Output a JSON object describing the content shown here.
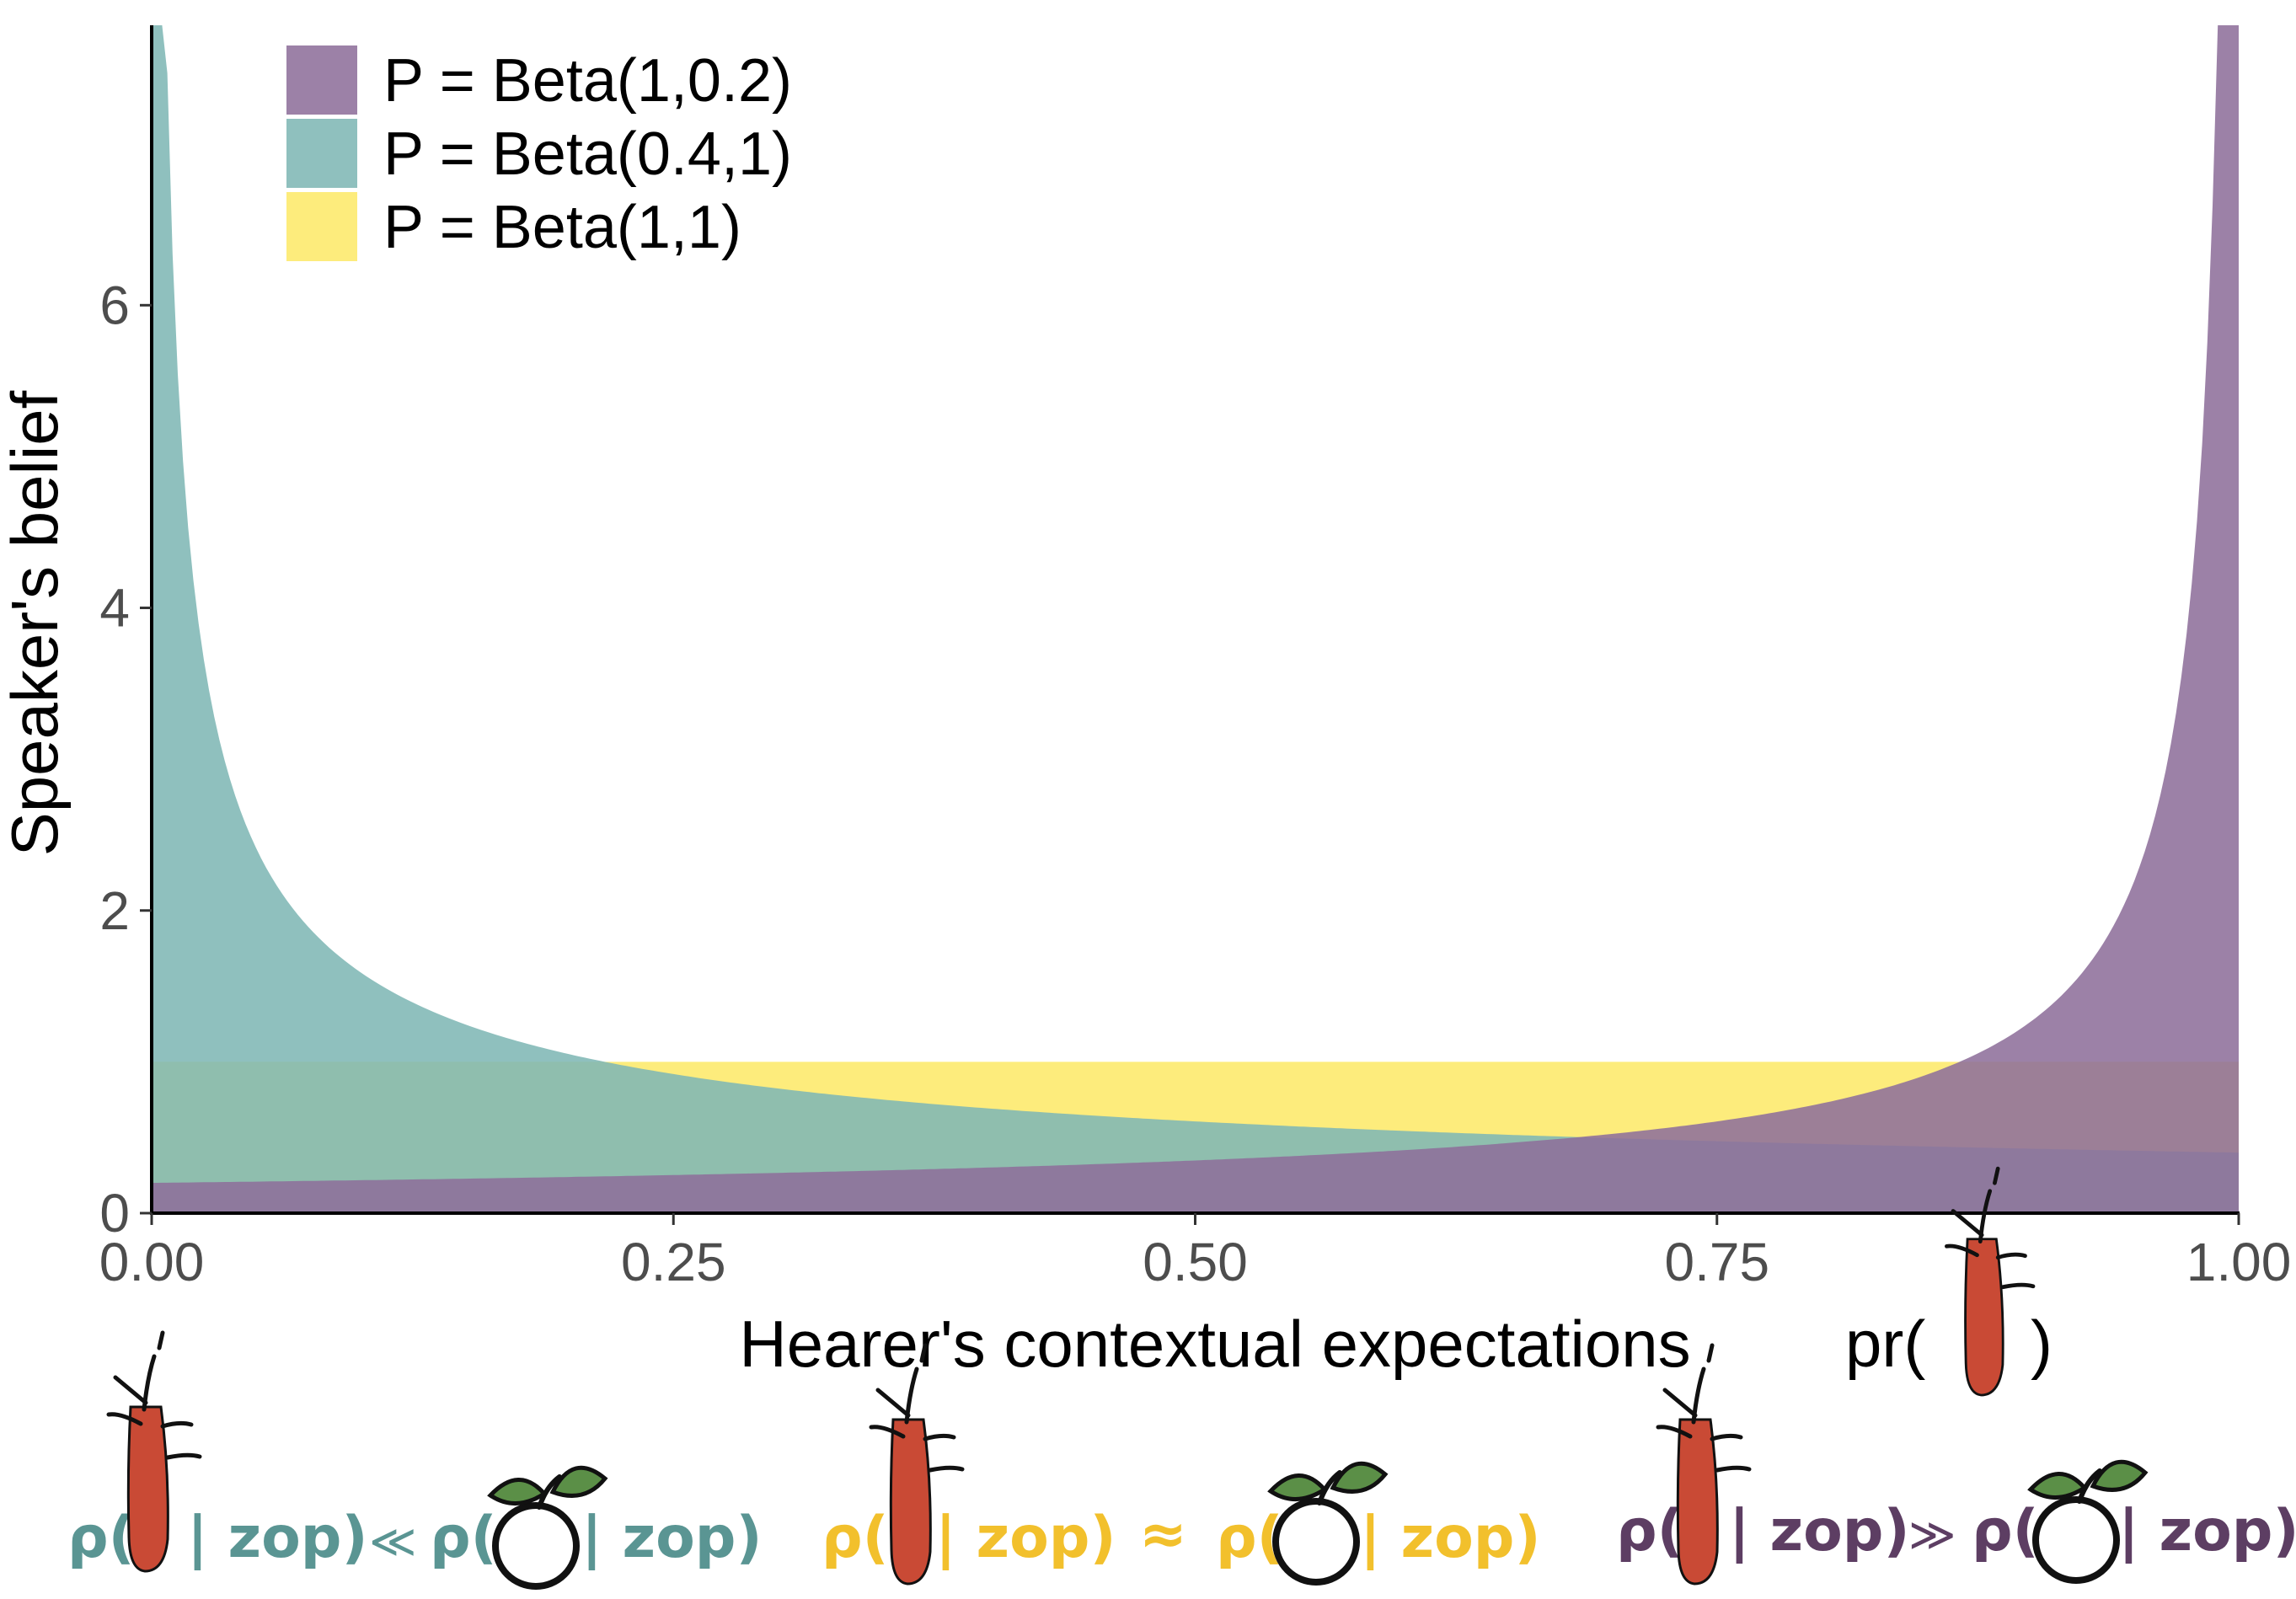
{
  "chart_data": {
    "type": "area",
    "xlabel": "Hearer's contextual expectations",
    "xlabel_suffix": "pr(",
    "xlabel_close": ")",
    "ylabel": "Speaker's belief",
    "xlim": [
      0,
      1
    ],
    "ylim": [
      0,
      7.85
    ],
    "x_ticks": [
      0,
      0.25,
      0.5,
      0.75,
      1.0
    ],
    "x_tick_labels": [
      "0.00",
      "0.25",
      "0.50",
      "0.75",
      "1.00"
    ],
    "y_ticks": [
      0,
      2,
      4,
      6
    ],
    "y_tick_labels": [
      "0",
      "2",
      "4",
      "6"
    ],
    "grid": false,
    "legend_position": "top-left",
    "series": [
      {
        "name": "P = Beta(1,0.2)",
        "distribution": "beta",
        "alpha": 1,
        "beta": 0.2,
        "color": "#8e6f9b"
      },
      {
        "name": "P = Beta(0.4,1)",
        "distribution": "beta",
        "alpha": 0.4,
        "beta": 1,
        "color": "#7fb7b5"
      },
      {
        "name": "P = Beta(1,1)",
        "distribution": "beta",
        "alpha": 1,
        "beta": 1,
        "color": "#fde96a"
      }
    ],
    "fill_opacity": 0.88
  },
  "annotations": [
    {
      "open": "ρ(",
      "mid": "| zop)",
      "relation": "≪",
      "open2": "ρ(",
      "end": "| zop)",
      "color": "#5a9593"
    },
    {
      "open": "ρ(",
      "mid": "| zop)",
      "relation": "≈",
      "open2": "ρ(",
      "end": "| zop)",
      "color": "#f2c02c"
    },
    {
      "open": "ρ(",
      "mid": "| zop)",
      "relation": "≫",
      "open2": "ρ(",
      "end": "| zop)",
      "color": "#5d3e63"
    }
  ],
  "icons": {
    "carrot": "carrot-icon",
    "apple": "apple-icon"
  }
}
